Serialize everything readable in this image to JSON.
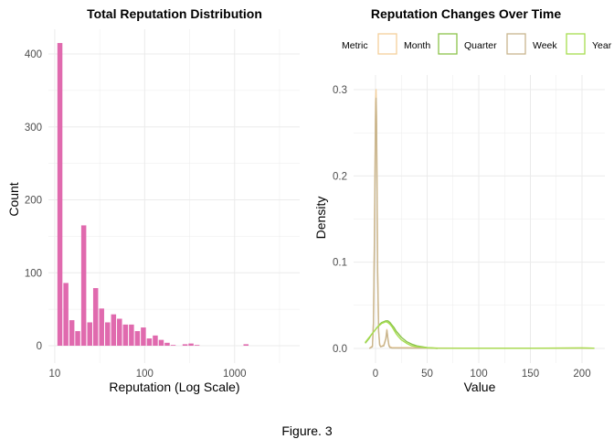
{
  "caption": "Figure. 3",
  "colors": {
    "histogram": "#E06AAE",
    "month": "#F3CF9B",
    "quarter": "#8BC34A",
    "week": "#C8B58E",
    "year": "#A6DD4E",
    "grid": "#EBEBEB"
  },
  "chart_data": [
    {
      "type": "bar",
      "title": "Total Reputation Distribution",
      "xlabel": "Reputation (Log Scale)",
      "ylabel": "Count",
      "x_scale": "log10",
      "xlim": [
        8.5,
        5300
      ],
      "ylim": [
        0,
        435
      ],
      "x_ticks": [
        {
          "value": 10,
          "label": "10"
        },
        {
          "value": 100,
          "label": "100"
        },
        {
          "value": 1000,
          "label": "1000"
        }
      ],
      "y_ticks": [
        {
          "value": 0,
          "label": "0"
        },
        {
          "value": 100,
          "label": "100"
        },
        {
          "value": 200,
          "label": "200"
        },
        {
          "value": 300,
          "label": "300"
        },
        {
          "value": 400,
          "label": "400"
        }
      ],
      "grid": true,
      "bins": [
        {
          "x": 11.4,
          "count": 415
        },
        {
          "x": 13.3,
          "count": 86
        },
        {
          "x": 15.5,
          "count": 35
        },
        {
          "x": 18.0,
          "count": 20
        },
        {
          "x": 21.0,
          "count": 165
        },
        {
          "x": 24.5,
          "count": 32
        },
        {
          "x": 28.5,
          "count": 79
        },
        {
          "x": 33.2,
          "count": 51
        },
        {
          "x": 38.7,
          "count": 32
        },
        {
          "x": 45.1,
          "count": 43
        },
        {
          "x": 52.5,
          "count": 37
        },
        {
          "x": 61.2,
          "count": 29
        },
        {
          "x": 71.3,
          "count": 29
        },
        {
          "x": 83.0,
          "count": 20
        },
        {
          "x": 96.7,
          "count": 25
        },
        {
          "x": 112.6,
          "count": 10
        },
        {
          "x": 131.2,
          "count": 14
        },
        {
          "x": 152.8,
          "count": 8
        },
        {
          "x": 178.0,
          "count": 4
        },
        {
          "x": 207.4,
          "count": 1
        },
        {
          "x": 241.6,
          "count": 0
        },
        {
          "x": 281.5,
          "count": 2
        },
        {
          "x": 327.9,
          "count": 3
        },
        {
          "x": 382.0,
          "count": 1
        },
        {
          "x": 445.0,
          "count": 0
        },
        {
          "x": 1340.0,
          "count": 2
        }
      ]
    },
    {
      "type": "line",
      "title": "Reputation Changes Over Time",
      "xlabel": "Value",
      "ylabel": "Density",
      "xlim": [
        -15,
        215
      ],
      "ylim": [
        -0.01,
        0.31
      ],
      "x_ticks": [
        {
          "value": 0,
          "label": "0"
        },
        {
          "value": 50,
          "label": "50"
        },
        {
          "value": 100,
          "label": "100"
        },
        {
          "value": 150,
          "label": "150"
        },
        {
          "value": 200,
          "label": "200"
        }
      ],
      "y_ticks": [
        {
          "value": 0,
          "label": "0.0"
        },
        {
          "value": 0.1,
          "label": "0.1"
        },
        {
          "value": 0.2,
          "label": "0.2"
        },
        {
          "value": 0.3,
          "label": "0.3"
        }
      ],
      "grid": true,
      "legend_title": "Metric",
      "legend_position": "top",
      "series": [
        {
          "name": "Month",
          "color_key": "month",
          "x": [
            -6,
            -3,
            -2,
            -1,
            0,
            0.5,
            1,
            2,
            3,
            4,
            5,
            8,
            10,
            11,
            12,
            13,
            14,
            16,
            20,
            30,
            60,
            100,
            150,
            200,
            210
          ],
          "y": [
            0,
            0.003,
            0.03,
            0.14,
            0.285,
            0.3,
            0.27,
            0.1,
            0.02,
            0.005,
            0.002,
            0.004,
            0.012,
            0.022,
            0.012,
            0.004,
            0.002,
            0.001,
            0.001,
            0.001,
            0.0005,
            0.0003,
            0.0003,
            0.0006,
            0.0003
          ]
        },
        {
          "name": "Quarter",
          "color_key": "quarter",
          "x": [
            -10,
            -6,
            -4,
            -2,
            0,
            2,
            4,
            6,
            8,
            10,
            12,
            14,
            16,
            18,
            20,
            25,
            30,
            35,
            40,
            50,
            60
          ],
          "y": [
            0.006,
            0.012,
            0.016,
            0.019,
            0.022,
            0.025,
            0.028,
            0.03,
            0.031,
            0.032,
            0.032,
            0.03,
            0.027,
            0.024,
            0.02,
            0.013,
            0.008,
            0.005,
            0.003,
            0.001,
            0
          ]
        },
        {
          "name": "Week",
          "color_key": "week",
          "x": [
            -6,
            -3,
            -2,
            -1,
            0,
            0.5,
            1,
            2,
            3,
            4,
            5,
            8,
            10,
            11,
            12,
            13,
            14,
            16,
            20,
            40,
            100,
            200,
            212
          ],
          "y": [
            0,
            0.002,
            0.03,
            0.13,
            0.265,
            0.29,
            0.26,
            0.09,
            0.02,
            0.004,
            0.002,
            0.003,
            0.011,
            0.021,
            0.011,
            0.003,
            0.001,
            0.0005,
            0.0005,
            0.0003,
            0.0003,
            0.0003,
            0.0002
          ]
        },
        {
          "name": "Year",
          "color_key": "year",
          "x": [
            -10,
            -8,
            -6,
            -4,
            -2,
            0,
            2,
            4,
            6,
            8,
            10,
            12,
            14,
            16,
            18,
            20,
            22,
            25,
            30,
            35,
            40,
            50,
            60,
            100,
            150,
            200,
            212
          ],
          "y": [
            0.007,
            0.01,
            0.013,
            0.016,
            0.019,
            0.022,
            0.025,
            0.027,
            0.029,
            0.03,
            0.031,
            0.03,
            0.028,
            0.025,
            0.021,
            0.017,
            0.014,
            0.01,
            0.006,
            0.003,
            0.002,
            0.0008,
            0.0003,
            0.0002,
            0.0002,
            0.0006,
            0.0003
          ]
        }
      ]
    }
  ]
}
